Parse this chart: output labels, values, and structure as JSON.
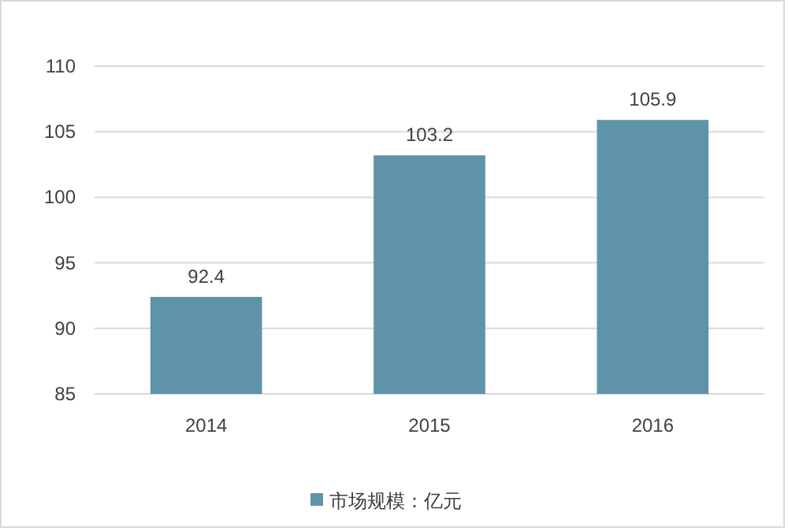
{
  "chart_data": {
    "type": "bar",
    "categories": [
      "2014",
      "2015",
      "2016"
    ],
    "series": [
      {
        "name": "市场规模：亿元",
        "color": "#5f93aa",
        "values": [
          92.4,
          103.2,
          105.9
        ]
      }
    ],
    "ylim": [
      85,
      110
    ],
    "yticks": [
      85,
      90,
      95,
      100,
      105,
      110
    ],
    "grid": "y",
    "legend": "bottom",
    "data_labels": true
  }
}
